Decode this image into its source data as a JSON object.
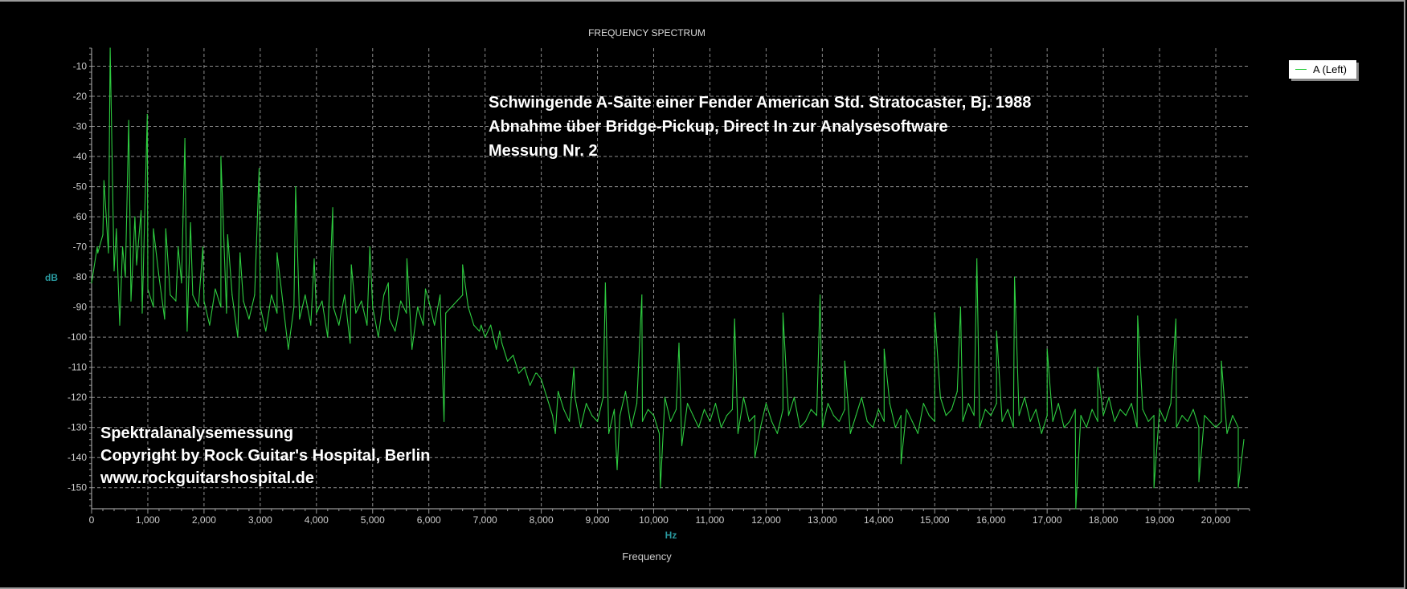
{
  "chart_data": {
    "type": "line",
    "title": "FREQUENCY SPECTRUM",
    "xlabel": "Frequency",
    "xunit": "Hz",
    "ylabel": "dB",
    "xlim": [
      0,
      20600
    ],
    "ylim": [
      -157,
      -4
    ],
    "grid": true,
    "legend_position": "top-right",
    "x_ticks": [
      0,
      1000,
      2000,
      3000,
      4000,
      5000,
      6000,
      7000,
      8000,
      9000,
      10000,
      11000,
      12000,
      13000,
      14000,
      15000,
      16000,
      17000,
      18000,
      19000,
      20000
    ],
    "x_tick_labels": [
      "0",
      "1,000",
      "2,000",
      "3,000",
      "4,000",
      "5,000",
      "6,000",
      "7,000",
      "8,000",
      "9,000",
      "10,000",
      "11,000",
      "12,000",
      "13,000",
      "14,000",
      "15,000",
      "16,000",
      "17,000",
      "18,000",
      "19,000",
      "20,000"
    ],
    "y_ticks": [
      -10,
      -20,
      -30,
      -40,
      -50,
      -60,
      -70,
      -80,
      -90,
      -100,
      -110,
      -120,
      -130,
      -140,
      -150
    ],
    "y_tick_labels": [
      "-10",
      "-20",
      "-30",
      "-40",
      "-50",
      "-60",
      "-70",
      "-80",
      "-90",
      "-100",
      "-110",
      "-120",
      "-130",
      "-140",
      "-150"
    ],
    "series": [
      {
        "name": "A (Left)",
        "color": "#2ecc40",
        "x_start": 0,
        "x_step": 100,
        "baseline_values": [
          -82,
          -70,
          -66,
          -72,
          -78,
          -96,
          -80,
          -88,
          -76,
          -92,
          -84,
          -90,
          -80,
          -94,
          -86,
          -88,
          -82,
          -98,
          -86,
          -90,
          -88,
          -96,
          -84,
          -90,
          -92,
          -86,
          -100,
          -88,
          -94,
          -86,
          -90,
          -98,
          -86,
          -92,
          -88,
          -104,
          -90,
          -94,
          -86,
          -96,
          -92,
          -88,
          -100,
          -90,
          -96,
          -86,
          -102,
          -92,
          -88,
          -96,
          -90,
          -100,
          -86,
          -94,
          -98,
          -88,
          -92,
          -104,
          -90,
          -96,
          -88,
          -96,
          -86,
          -92,
          -90,
          -88,
          -86,
          -90,
          -96,
          -98,
          -100,
          -96,
          -104,
          -102,
          -108,
          -106,
          -112,
          -110,
          -116,
          -112,
          -114,
          -120,
          -126,
          -118,
          -124,
          -128,
          -120,
          -130,
          -122,
          -126,
          -128,
          -120,
          -132,
          -124,
          -126,
          -118,
          -130,
          -122,
          -128,
          -124,
          -126,
          -132,
          -120,
          -128,
          -124,
          -136,
          -122,
          -126,
          -130,
          -124,
          -128,
          -122,
          -130,
          -126,
          -124,
          -132,
          -120,
          -128,
          -126,
          -130,
          -122,
          -128,
          -132,
          -124,
          -126,
          -120,
          -130,
          -128,
          -124,
          -126,
          -130,
          -122,
          -126,
          -128,
          -124,
          -132,
          -126,
          -120,
          -128,
          -130,
          -124,
          -128,
          -122,
          -130,
          -126,
          -124,
          -128,
          -132,
          -122,
          -126,
          -128,
          -120,
          -126,
          -124,
          -118,
          -128,
          -122,
          -126,
          -130,
          -124,
          -126,
          -122,
          -128,
          -124,
          -130,
          -126,
          -120,
          -128,
          -124,
          -132,
          -126,
          -128,
          -122,
          -130,
          -128,
          -124,
          -126,
          -130,
          -124,
          -128,
          -126,
          -120,
          -128,
          -124,
          -126,
          -122,
          -130,
          -124,
          -128,
          -126,
          -124,
          -128,
          -122,
          -130,
          -126,
          -128,
          -124,
          -130,
          -126,
          -128,
          -130,
          -128,
          -132,
          -126,
          -130,
          -134
        ],
        "peaks_and_dips": [
          [
            110,
            -72
          ],
          [
            220,
            -48
          ],
          [
            330,
            -4
          ],
          [
            440,
            -64
          ],
          [
            550,
            -70
          ],
          [
            660,
            -28
          ],
          [
            770,
            -60
          ],
          [
            880,
            -58
          ],
          [
            990,
            -26
          ],
          [
            1100,
            -64
          ],
          [
            1320,
            -64
          ],
          [
            1540,
            -70
          ],
          [
            1660,
            -34
          ],
          [
            1760,
            -62
          ],
          [
            1980,
            -70
          ],
          [
            2300,
            -40
          ],
          [
            2420,
            -66
          ],
          [
            2640,
            -72
          ],
          [
            2980,
            -44
          ],
          [
            3300,
            -72
          ],
          [
            3630,
            -50
          ],
          [
            3960,
            -74
          ],
          [
            4290,
            -57
          ],
          [
            4620,
            -76
          ],
          [
            4950,
            -70
          ],
          [
            5280,
            -82
          ],
          [
            5610,
            -74
          ],
          [
            5940,
            -84
          ],
          [
            6270,
            -128
          ],
          [
            6600,
            -76
          ],
          [
            6930,
            -96
          ],
          [
            7260,
            -98
          ],
          [
            7920,
            -112
          ],
          [
            8250,
            -132
          ],
          [
            8580,
            -110
          ],
          [
            9140,
            -82
          ],
          [
            9350,
            -144
          ],
          [
            9790,
            -86
          ],
          [
            10120,
            -150
          ],
          [
            10450,
            -102
          ],
          [
            11440,
            -94
          ],
          [
            11800,
            -140
          ],
          [
            12300,
            -92
          ],
          [
            12960,
            -86
          ],
          [
            13400,
            -108
          ],
          [
            14100,
            -104
          ],
          [
            14400,
            -142
          ],
          [
            15000,
            -92
          ],
          [
            15460,
            -90
          ],
          [
            15750,
            -74
          ],
          [
            16100,
            -98
          ],
          [
            16420,
            -80
          ],
          [
            17000,
            -104
          ],
          [
            17510,
            -157
          ],
          [
            17900,
            -110
          ],
          [
            18610,
            -93
          ],
          [
            18900,
            -150
          ],
          [
            19290,
            -94
          ],
          [
            19700,
            -148
          ],
          [
            20100,
            -108
          ],
          [
            20400,
            -150
          ]
        ]
      }
    ],
    "annotations": {
      "top": [
        "Schwingende A-Saite einer Fender American Std. Stratocaster, Bj. 1988",
        "Abnahme über Bridge-Pickup, Direct In zur Analysesoftware",
        "Messung Nr. 2"
      ],
      "bottom": [
        "Spektralanalysemessung",
        "Copyright by Rock Guitar's Hospital, Berlin",
        "www.rockguitarshospital.de"
      ]
    }
  },
  "colors": {
    "background": "#000000",
    "grid": "#b0b0b0",
    "axis_text": "#cccccc",
    "unit_text": "#2a9aa0",
    "trace": "#2ecc40"
  }
}
